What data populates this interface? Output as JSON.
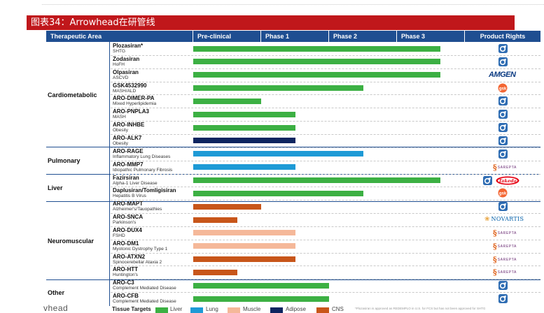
{
  "title": "图表34：Arrowhead在研管线",
  "header": {
    "therapeutic_area": "Therapeutic Area",
    "phases": [
      "Pre-clinical",
      "Phase 1",
      "Phase 2",
      "Phase 3"
    ],
    "product_rights": "Product Rights"
  },
  "categories": [
    {
      "name": "Cardiometabolic"
    },
    {
      "name": "Pulmonary"
    },
    {
      "name": "Liver"
    },
    {
      "name": "Neuromuscular"
    },
    {
      "name": "Other"
    }
  ],
  "tissue_colors": {
    "Liver": "#3cb043",
    "Lung": "#1e9ad6",
    "Muscle": "#f5b899",
    "Adipose": "#0d2560",
    "CNS": "#c8561a"
  },
  "drugs": [
    {
      "name": "Plozasiran*",
      "indication": "SHTG",
      "tissue": "Liver",
      "stage": 3.64,
      "partner": "Arrowhead"
    },
    {
      "name": "Zodasiran",
      "indication": "HoFH",
      "tissue": "Liver",
      "stage": 3.64,
      "partner": "Arrowhead"
    },
    {
      "name": "Olpasiran",
      "indication": "ASCVD",
      "tissue": "Liver",
      "stage": 3.64,
      "partner": "AMGEN"
    },
    {
      "name": "GSK4532990",
      "indication": "MASH/ALD",
      "tissue": "Liver",
      "stage": 2.5,
      "partner": "gsk"
    },
    {
      "name": "ARO-DIMER-PA",
      "indication": "Mixed Hyperlipidemia",
      "tissue": "Liver",
      "stage": 1.0,
      "partner": "Arrowhead"
    },
    {
      "name": "ARO-PNPLA3",
      "indication": "MASH",
      "tissue": "Liver",
      "stage": 1.5,
      "partner": "Arrowhead"
    },
    {
      "name": "ARO-INHBE",
      "indication": "Obesity",
      "tissue": "Liver",
      "stage": 1.5,
      "partner": "Arrowhead"
    },
    {
      "name": "ARO-ALK7",
      "indication": "Obesity",
      "tissue": "Adipose",
      "stage": 1.5,
      "partner": "Arrowhead"
    },
    {
      "name": "ARO-RAGE",
      "indication": "Inflammatory Lung Diseases",
      "tissue": "Lung",
      "stage": 2.5,
      "partner": "Arrowhead"
    },
    {
      "name": "ARO-MMP7",
      "indication": "Idiopathic Pulmonary Fibrosis",
      "tissue": "Lung",
      "stage": 1.5,
      "partner": "SAREPTA"
    },
    {
      "name": "Fazirsiran",
      "indication": "Alpha-1 Liver Disease",
      "tissue": "Liver",
      "stage": 3.64,
      "partner": "Arrowhead + Takeda"
    },
    {
      "name": "Daplusiran/Tomligisiran",
      "indication": "Hepatitis B Virus",
      "tissue": "Liver",
      "stage": 2.5,
      "partner": "gsk"
    },
    {
      "name": "ARO-MAPT",
      "indication": "Alzheimer's/Tauopathies",
      "tissue": "CNS",
      "stage": 1.0,
      "partner": "Arrowhead"
    },
    {
      "name": "ARO-SNCA",
      "indication": "Parkinson's",
      "tissue": "CNS",
      "stage": 0.65,
      "partner": "NOVARTIS"
    },
    {
      "name": "ARO-DUX4",
      "indication": "FSHD",
      "tissue": "Muscle",
      "stage": 1.5,
      "partner": "SAREPTA"
    },
    {
      "name": "ARO-DM1",
      "indication": "Myotonic Dystrophy Type 1",
      "tissue": "Muscle",
      "stage": 1.5,
      "partner": "SAREPTA"
    },
    {
      "name": "ARO-ATXN2",
      "indication": "Spinocerebellar Ataxia 2",
      "tissue": "CNS",
      "stage": 1.5,
      "partner": "SAREPTA"
    },
    {
      "name": "ARO-HTT",
      "indication": "Huntington's",
      "tissue": "CNS",
      "stage": 0.65,
      "partner": "SAREPTA"
    },
    {
      "name": "ARO-C3",
      "indication": "Complement Mediated Disease",
      "tissue": "Liver",
      "stage": 2.0,
      "partner": "Arrowhead"
    },
    {
      "name": "ARO-CFB",
      "indication": "Complement Mediated Disease",
      "tissue": "Liver",
      "stage": 2.0,
      "partner": "Arrowhead"
    }
  ],
  "partner_labels": {
    "amgen": "AMGEN",
    "gsk": "gsk",
    "sarepta": "SAREPTA",
    "novartis": "NOVARTIS",
    "takeda": "Takeda"
  },
  "footer": {
    "logo_text": "vhead",
    "tissue_targets_label": "Tissue Targets",
    "legend": [
      "Liver",
      "Lung",
      "Muscle",
      "Adipose",
      "CNS"
    ],
    "note": "*Plozasiran is approved as REDEMPLO in U.S. for FCS but has not been approved for SHTG"
  }
}
